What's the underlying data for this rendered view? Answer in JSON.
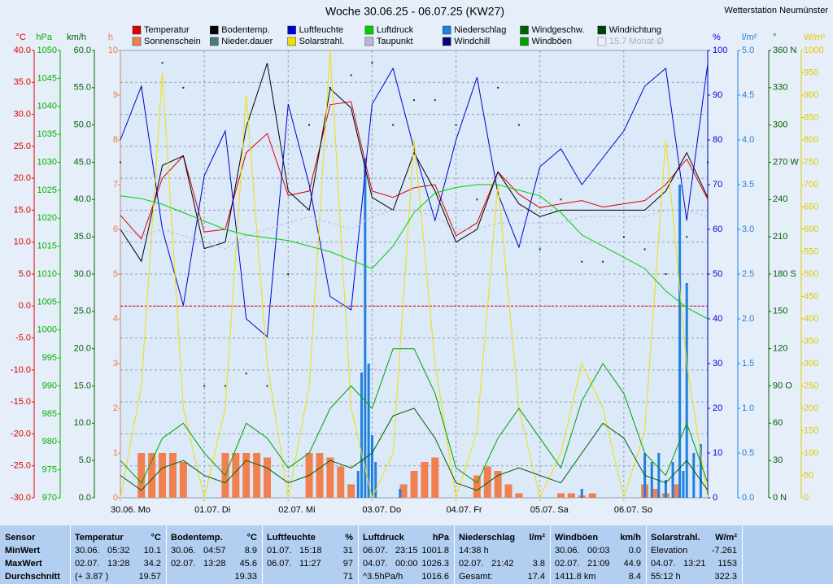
{
  "chart_data": {
    "type": "line",
    "title": "Woche 30.06.25 - 06.07.25 (KW27)",
    "station": "Wetterstation Neumünster",
    "xlim": [
      0,
      168
    ],
    "xticks": [
      {
        "value": 0,
        "label": "30.06. Mo"
      },
      {
        "value": 24,
        "label": "01.07. Di"
      },
      {
        "value": 48,
        "label": "02.07. Mi"
      },
      {
        "value": 72,
        "label": "03.07. Do"
      },
      {
        "value": 96,
        "label": "04.07. Fr"
      },
      {
        "value": 120,
        "label": "05.07. Sa"
      },
      {
        "value": 144,
        "label": "06.07. So"
      }
    ],
    "x": [
      0,
      6,
      12,
      18,
      24,
      30,
      36,
      42,
      48,
      54,
      60,
      66,
      72,
      78,
      84,
      90,
      96,
      102,
      108,
      114,
      120,
      126,
      132,
      138,
      144,
      150,
      156,
      162,
      168
    ],
    "grid": true,
    "y_axes": [
      {
        "label": "°C",
        "side": "left",
        "color": "#e00000",
        "grid": true,
        "ylim": [
          -30,
          40
        ],
        "yticks": [
          {
            "value": 40,
            "label": "40.0"
          },
          {
            "value": 35,
            "label": "35.0"
          },
          {
            "value": 30,
            "label": "30.0"
          },
          {
            "value": 25,
            "label": "25.0"
          },
          {
            "value": 20,
            "label": "20.0"
          },
          {
            "value": 15,
            "label": "15.0"
          },
          {
            "value": 10,
            "label": "10.0"
          },
          {
            "value": 5,
            "label": "5.0"
          },
          {
            "value": 0,
            "label": "0.0"
          },
          {
            "value": -5,
            "label": "-5.0"
          },
          {
            "value": -10,
            "label": "-10.0"
          },
          {
            "value": -15,
            "label": "-15.0"
          },
          {
            "value": -20,
            "label": "-20.0"
          },
          {
            "value": -25,
            "label": "-25.0"
          },
          {
            "value": -30,
            "label": "-30.0"
          }
        ]
      },
      {
        "label": "hPa",
        "side": "left",
        "color": "#00b000",
        "ylim": [
          970,
          1050
        ],
        "yticks": [
          1050,
          1045,
          1040,
          1035,
          1030,
          1025,
          1020,
          1015,
          1010,
          1005,
          1000,
          995,
          990,
          985,
          980,
          975,
          970
        ]
      },
      {
        "label": "km/h",
        "side": "left",
        "color": "#006000",
        "ylim": [
          0,
          60
        ],
        "yticks": [
          {
            "value": 60,
            "label": "60.0"
          },
          {
            "value": 55,
            "label": "55.0"
          },
          {
            "value": 50,
            "label": "50.0"
          },
          {
            "value": 45,
            "label": "45.0"
          },
          {
            "value": 40,
            "label": "40.0"
          },
          {
            "value": 35,
            "label": "35.0"
          },
          {
            "value": 30,
            "label": "30.0"
          },
          {
            "value": 25,
            "label": "25.0"
          },
          {
            "value": 20,
            "label": "20.0"
          },
          {
            "value": 15,
            "label": "15.0"
          },
          {
            "value": 10,
            "label": "10.0"
          },
          {
            "value": 5,
            "label": "5.0"
          },
          {
            "value": 0,
            "label": "0.0"
          }
        ]
      },
      {
        "label": "h",
        "side": "left",
        "color": "#f07840",
        "ylim": [
          0,
          10
        ],
        "yticks": [
          10,
          9,
          8,
          7,
          6,
          5,
          4,
          3,
          2,
          1,
          0
        ]
      },
      {
        "label": "%",
        "side": "right",
        "color": "#0000d0",
        "ylim": [
          0,
          100
        ],
        "yticks": [
          100,
          90,
          80,
          70,
          60,
          50,
          40,
          30,
          20,
          10,
          0
        ]
      },
      {
        "label": "l/m²",
        "side": "right",
        "color": "#2080e0",
        "ylim": [
          0,
          5
        ],
        "yticks": [
          {
            "value": 5,
            "label": "5.0"
          },
          4.5,
          {
            "value": 4,
            "label": "4.0"
          },
          3.5,
          {
            "value": 3,
            "label": "3.0"
          },
          2.5,
          {
            "value": 2,
            "label": "2.0"
          },
          1.5,
          {
            "value": 1,
            "label": "1.0"
          },
          0.5,
          {
            "value": 0,
            "label": "0.0"
          }
        ]
      },
      {
        "label": "°",
        "side": "right",
        "color": "#006000",
        "ylim": [
          0,
          360
        ],
        "yticks": [
          {
            "value": 360,
            "label": "360 N"
          },
          330,
          300,
          {
            "value": 270,
            "label": "270 W"
          },
          240,
          210,
          {
            "value": 180,
            "label": "180 S"
          },
          150,
          120,
          {
            "value": 90,
            "label": "90 O"
          },
          60,
          30,
          {
            "value": 0,
            "label": "0 N"
          }
        ]
      },
      {
        "label": "W/m²",
        "side": "right",
        "color": "#e0c800",
        "ylim": [
          0,
          1000
        ],
        "yticks": [
          1000,
          950,
          900,
          850,
          800,
          750,
          700,
          650,
          600,
          550,
          500,
          450,
          400,
          350,
          300,
          250,
          200,
          150,
          100,
          50,
          0
        ]
      }
    ],
    "zero_line": {
      "value": 0,
      "color": "#e00000"
    },
    "series": [
      {
        "name": "Temperatur",
        "color": "#e00000",
        "axis": "°C",
        "style": "line",
        "values": [
          14.2,
          10.5,
          20,
          23.5,
          11.6,
          12,
          24,
          27,
          17.3,
          18,
          31.5,
          32,
          18,
          17,
          18.5,
          19,
          11,
          13,
          21,
          17.5,
          15.4,
          16,
          16.5,
          15.5,
          16,
          16.5,
          19,
          23,
          16.7
        ]
      },
      {
        "name": "Sonnenschein",
        "color": "#f08050",
        "axis": "h",
        "style": "bars",
        "x": [
          6,
          9,
          12,
          15,
          18,
          30,
          33,
          36,
          39,
          42,
          54,
          57,
          60,
          63,
          66,
          78,
          81,
          84,
          87,
          90,
          102,
          105,
          108,
          111,
          114,
          126,
          129,
          132,
          135,
          138,
          150,
          153,
          156,
          159,
          162
        ],
        "values": [
          1,
          1,
          1,
          1,
          0.8,
          1,
          1,
          1,
          1,
          0.9,
          1,
          1,
          0.9,
          0.7,
          0.3,
          0,
          0.3,
          0.6,
          0.8,
          0.9,
          0.5,
          0.7,
          0.6,
          0.3,
          0.1,
          0.1,
          0.1,
          0.05,
          0.1,
          0,
          0.3,
          0.2,
          0.1,
          0.3,
          0
        ]
      },
      {
        "name": "Bodentemp.",
        "color": "#000000",
        "axis": "°C",
        "style": "line",
        "values": [
          12,
          7,
          22,
          23.5,
          9,
          10,
          28,
          38,
          18,
          15,
          34,
          31,
          17,
          15,
          24,
          18,
          10,
          12,
          21,
          16,
          14,
          15,
          15,
          15,
          15,
          15,
          18,
          24,
          17
        ]
      },
      {
        "name": "Nieder.dauer",
        "color": "#408080"
      },
      {
        "name": "Luftfeuchte",
        "color": "#0000d0",
        "axis": "%",
        "style": "line",
        "values": [
          80,
          92,
          60,
          43,
          72,
          82,
          40,
          36,
          88,
          70,
          45,
          42,
          88,
          96,
          78,
          62,
          80,
          94,
          68,
          56,
          74,
          78,
          70,
          76,
          82,
          92,
          96,
          62,
          97
        ]
      },
      {
        "name": "Solarstrahl.",
        "color": "#f0e000",
        "axis": "W/m²",
        "style": "line",
        "values": [
          0,
          250,
          950,
          200,
          0,
          200,
          900,
          300,
          0,
          250,
          1000,
          200,
          0,
          100,
          800,
          300,
          0,
          150,
          700,
          200,
          0,
          100,
          300,
          200,
          0,
          150,
          800,
          300,
          0
        ]
      },
      {
        "name": "Luftdruck",
        "color": "#00d000",
        "axis": "hPa",
        "style": "line",
        "values": [
          1024,
          1023.5,
          1022.5,
          1021,
          1019.5,
          1018,
          1017,
          1016.5,
          1016,
          1015,
          1014,
          1012.5,
          1011,
          1015,
          1021,
          1024.5,
          1025.5,
          1026,
          1026,
          1025,
          1024,
          1021,
          1017,
          1015,
          1013,
          1011,
          1007,
          1004,
          1002
        ]
      },
      {
        "name": "Taupunkt",
        "color": "#b8b8d8",
        "axis": "°C",
        "style": "dashed",
        "values": [
          12,
          11,
          12,
          11,
          10,
          9,
          11,
          12,
          13,
          14,
          13,
          12,
          14,
          15,
          15,
          14,
          12,
          12,
          13,
          13,
          13,
          13,
          14,
          14,
          14,
          14,
          15,
          15,
          14
        ]
      },
      {
        "name": "Niederschlag",
        "color": "#2080e0",
        "axis": "l/m²",
        "style": "thin-bars",
        "x": [
          68,
          69,
          70,
          71,
          72,
          73,
          80,
          132,
          150,
          152,
          154,
          156,
          158,
          160,
          161,
          162,
          164,
          166
        ],
        "values": [
          0.3,
          1.4,
          3.8,
          1.5,
          0.7,
          0.4,
          0.1,
          0.1,
          0.5,
          0.4,
          0.5,
          0.2,
          0.4,
          3.5,
          0.3,
          2.4,
          0.5,
          0.6
        ]
      },
      {
        "name": "Windchill",
        "color": "#000080"
      },
      {
        "name": "Windgeschw.",
        "color": "#006000",
        "axis": "km/h",
        "style": "line",
        "values": [
          3,
          1,
          4,
          5,
          3,
          2,
          5,
          4,
          2,
          3,
          5,
          4,
          6,
          11,
          12,
          8,
          2,
          1,
          3,
          4,
          3,
          2,
          6,
          10,
          8,
          3,
          2,
          5,
          1
        ]
      },
      {
        "name": "Windböen",
        "color": "#00a000",
        "axis": "km/h",
        "style": "line",
        "values": [
          5,
          2,
          8,
          10,
          6,
          3,
          10,
          8,
          4,
          6,
          12,
          15,
          12,
          20,
          20,
          14,
          4,
          2,
          8,
          12,
          8,
          4,
          13,
          18,
          14,
          6,
          3,
          10,
          2
        ]
      },
      {
        "name": "Windrichtung",
        "color": "#004000",
        "axis": "°",
        "style": "dots",
        "values": [
          270,
          330,
          350,
          330,
          90,
          90,
          100,
          90,
          180,
          300,
          330,
          340,
          350,
          300,
          320,
          320,
          300,
          240,
          330,
          300,
          200,
          240,
          190,
          190,
          210,
          200,
          180,
          210,
          270
        ]
      }
    ],
    "legend_extra": "15.7 Monat-Ø"
  },
  "table": {
    "row_labels": [
      "Sensor",
      "MinWert",
      "MaxWert",
      "Durchschnitt"
    ],
    "groups": [
      {
        "name": "Temperatur",
        "unit": "°C",
        "rows": [
          {
            "a": "30.06.",
            "b": "05:32",
            "v": "10.1"
          },
          {
            "a": "02.07.",
            "b": "13:28",
            "v": "34.2"
          },
          {
            "a": "(+ 3.87 )",
            "v": "19.57"
          }
        ]
      },
      {
        "name": "Bodentemp.",
        "unit": "°C",
        "rows": [
          {
            "a": "30.06.",
            "b": "04:57",
            "v": "8.9"
          },
          {
            "a": "02.07.",
            "b": "13:28",
            "v": "45.6"
          },
          {
            "v": "19.33"
          }
        ]
      },
      {
        "name": "Luftfeuchte",
        "unit": "%",
        "rows": [
          {
            "a": "01.07.",
            "b": "15:18",
            "v": "31"
          },
          {
            "a": "06.07.",
            "b": "11:27",
            "v": "97"
          },
          {
            "v": "71"
          }
        ]
      },
      {
        "name": "Luftdruck",
        "unit": "hPa",
        "rows": [
          {
            "a": "06.07.",
            "b": "23:15",
            "v": "1001.8"
          },
          {
            "a": "04.07.",
            "b": "00:00",
            "v": "1026.3"
          },
          {
            "a": "^3.5hPa/h",
            "v": "1016.6"
          }
        ]
      },
      {
        "name": "Niederschlag",
        "unit": "l/m²",
        "rows": [
          {
            "a": "14:38 h"
          },
          {
            "a": "02.07.",
            "b": "21:42",
            "v": "3.8"
          },
          {
            "a": "Gesamt:",
            "v": "17.4"
          }
        ]
      },
      {
        "name": "Windböen",
        "unit": "km/h",
        "rows": [
          {
            "a": "30.06.",
            "b": "00:03",
            "v": "0.0"
          },
          {
            "a": "02.07.",
            "b": "21:09",
            "v": "44.9"
          },
          {
            "a": "1411.8 km",
            "v": "8.4"
          }
        ]
      },
      {
        "name": "Solarstrahl.",
        "unit": "W/m²",
        "rows": [
          {
            "a": "Elevation",
            "v": "-7.261"
          },
          {
            "a": "04.07.",
            "b": "13:21",
            "v": "1153"
          },
          {
            "a": "55:12 h",
            "v": "322.3"
          }
        ]
      }
    ]
  }
}
